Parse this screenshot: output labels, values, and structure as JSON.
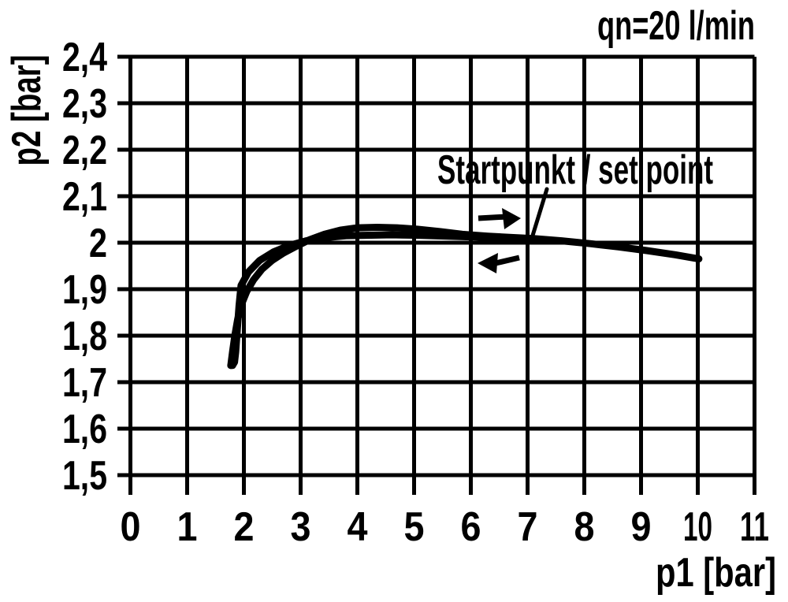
{
  "chart_data": {
    "type": "line",
    "title": "qn=20 l/min",
    "xlabel": "p1 [bar]",
    "ylabel": "p2 [bar]",
    "xlim": [
      0,
      11
    ],
    "ylim": [
      1.5,
      2.4
    ],
    "grid": "on",
    "x_tick_labels": [
      "0",
      "1",
      "2",
      "3",
      "4",
      "5",
      "6",
      "7",
      "8",
      "9",
      "10",
      "11"
    ],
    "x_tick_values": [
      0,
      1,
      2,
      3,
      4,
      5,
      6,
      7,
      8,
      9,
      10,
      11
    ],
    "y_tick_labels": [
      "2,4",
      "2,3",
      "2,2",
      "2,1",
      "2",
      "1,9",
      "1,8",
      "1,7",
      "1,6",
      "1,5"
    ],
    "y_tick_values": [
      2.4,
      2.3,
      2.2,
      2.1,
      2.0,
      1.9,
      1.8,
      1.7,
      1.6,
      1.5
    ],
    "series": [
      {
        "name": "p1 increasing (right arrow branch)",
        "points": [
          [
            1.77,
            1.736
          ],
          [
            1.8,
            1.765
          ],
          [
            1.84,
            1.8
          ],
          [
            1.89,
            1.835
          ],
          [
            1.96,
            1.868
          ],
          [
            2.05,
            1.895
          ],
          [
            2.17,
            1.92
          ],
          [
            2.32,
            1.943
          ],
          [
            2.5,
            1.962
          ],
          [
            2.7,
            1.978
          ],
          [
            2.92,
            1.992
          ],
          [
            3.15,
            2.006
          ],
          [
            3.42,
            2.018
          ],
          [
            3.7,
            2.027
          ],
          [
            4.0,
            2.032
          ],
          [
            4.35,
            2.033
          ],
          [
            4.7,
            2.032
          ],
          [
            5.05,
            2.029
          ],
          [
            5.45,
            2.024
          ],
          [
            5.85,
            2.018
          ],
          [
            6.3,
            2.014
          ],
          [
            6.75,
            2.011
          ],
          [
            7.1,
            2.009
          ],
          [
            7.6,
            2.004
          ],
          [
            8.1,
            1.998
          ],
          [
            8.6,
            1.991
          ],
          [
            9.1,
            1.983
          ],
          [
            9.6,
            1.974
          ],
          [
            10.02,
            1.965
          ]
        ]
      },
      {
        "name": "p1 decreasing (left arrow branch)",
        "points": [
          [
            7.1,
            2.009
          ],
          [
            6.6,
            2.01
          ],
          [
            6.1,
            2.012
          ],
          [
            5.6,
            2.014
          ],
          [
            5.1,
            2.016
          ],
          [
            4.6,
            2.017
          ],
          [
            4.15,
            2.016
          ],
          [
            3.8,
            2.015
          ],
          [
            3.45,
            2.011
          ],
          [
            3.1,
            2.004
          ],
          [
            2.8,
            1.994
          ],
          [
            2.52,
            1.98
          ],
          [
            2.28,
            1.962
          ],
          [
            2.08,
            1.937
          ],
          [
            1.95,
            1.908
          ],
          [
            1.915,
            1.865
          ],
          [
            1.885,
            1.815
          ],
          [
            1.855,
            1.765
          ],
          [
            1.835,
            1.743
          ],
          [
            1.8,
            1.736
          ],
          [
            1.77,
            1.736
          ]
        ]
      }
    ],
    "annotations": [
      {
        "text": "Startpunkt / set point",
        "target": {
          "p1": 7.1,
          "p2": 2.01
        }
      },
      {
        "text": "qn=20 l/min",
        "position": "top-right"
      }
    ],
    "direction_arrows": [
      {
        "symbol": "right-arrow",
        "meaning": "increasing p1",
        "at": {
          "p1": 6.4,
          "p2": 2.05
        }
      },
      {
        "symbol": "left-arrow",
        "meaning": "decreasing p1",
        "at": {
          "p1": 6.4,
          "p2": 1.96
        }
      }
    ],
    "legend": "none"
  }
}
